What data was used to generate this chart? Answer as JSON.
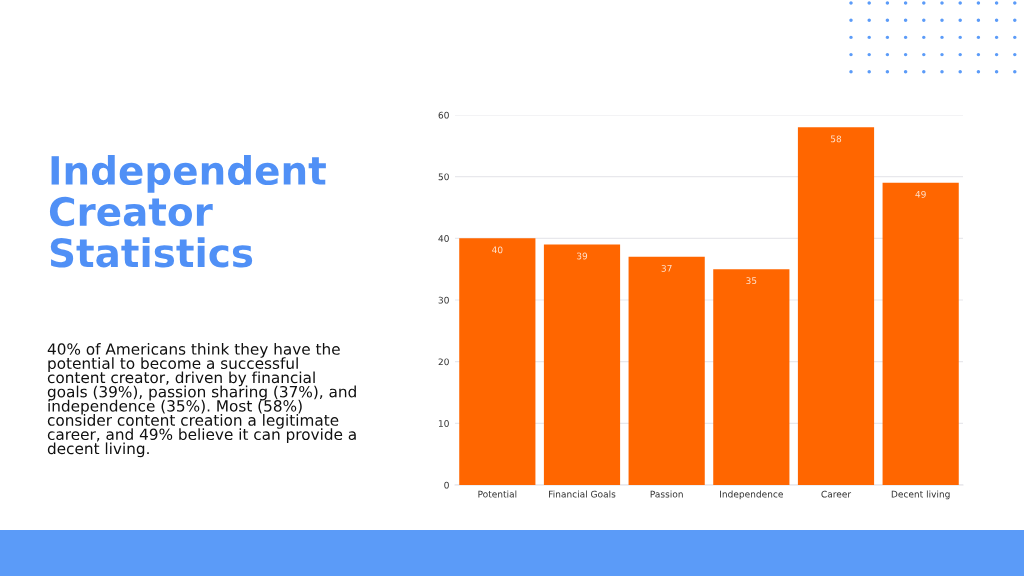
{
  "chart_data": {
    "type": "bar",
    "title": "Independent\nCreator\nStatistics",
    "categories": [
      "Potential",
      "Financial Goals",
      "Passion",
      "Independence",
      "Career",
      "Decent living"
    ],
    "values": [
      40,
      39,
      37,
      35,
      58,
      49
    ],
    "color": "#ff6600",
    "ylim": [
      0,
      60
    ],
    "yticks": [
      0,
      10,
      20,
      30,
      40,
      50,
      60
    ],
    "grid": "y",
    "data_labels": true,
    "annotations": [
      "40% of Americans think they have the\npotential to become a successful\ncontent creator, driven by financial\ngoals (39%), passion sharing (37%), and\nindependence (35%). Most (58%)\nconsider content creation a legitimate\ncareer, and 49% believe it can provide a\ndecent living."
    ]
  }
}
